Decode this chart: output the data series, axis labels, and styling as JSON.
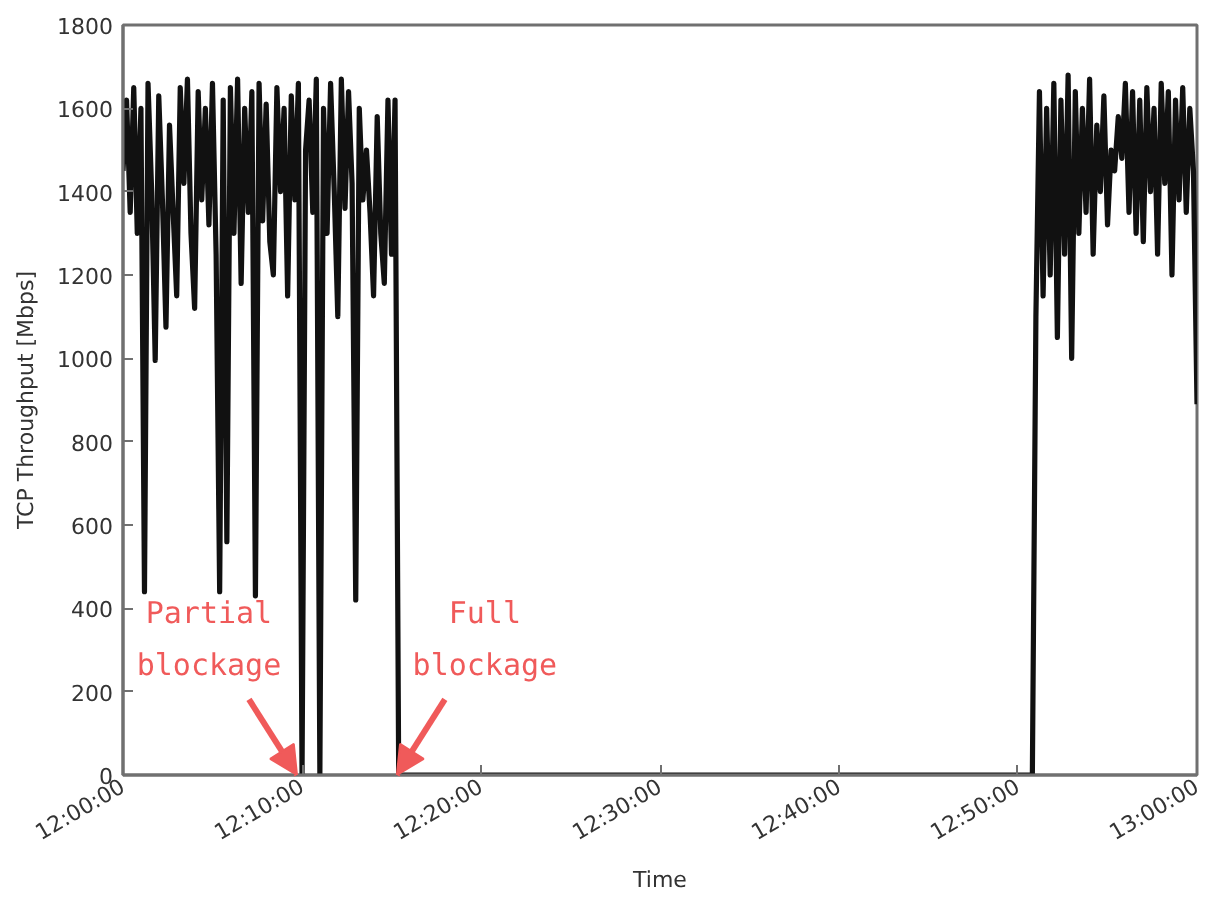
{
  "chart_data": {
    "type": "line",
    "xlabel": "Time",
    "ylabel": "TCP Throughput [Mbps]",
    "color": "#111111",
    "x": [
      12.0,
      12.0033,
      12.0067,
      12.01,
      12.0133,
      12.0167,
      12.02,
      12.0233,
      12.0267,
      12.03,
      12.0333,
      12.0367,
      12.04,
      12.0433,
      12.0467,
      12.05,
      12.0533,
      12.0567,
      12.06,
      12.0633,
      12.0667,
      12.07,
      12.0733,
      12.0767,
      12.08,
      12.0833,
      12.0867,
      12.09,
      12.0933,
      12.0967,
      12.1,
      12.1033,
      12.1067,
      12.11,
      12.1133,
      12.1167,
      12.12,
      12.1233,
      12.1267,
      12.13,
      12.1333,
      12.1367,
      12.14,
      12.1433,
      12.1467,
      12.15,
      12.1533,
      12.1567,
      12.16,
      12.1633,
      12.1667,
      12.17,
      12.1733,
      12.1767,
      12.18,
      12.1833,
      12.1867,
      12.19,
      12.1933,
      12.1967,
      12.2,
      12.2033,
      12.2067,
      12.21,
      12.2133,
      12.2167,
      12.22,
      12.2233,
      12.2267,
      12.23,
      12.2333,
      12.2367,
      12.24,
      12.2433,
      12.2467,
      12.25,
      12.2533,
      12.2567,
      12.8467,
      12.85,
      12.8533,
      12.8567,
      12.86,
      12.8633,
      12.8667,
      12.87,
      12.8733,
      12.8767,
      12.88,
      12.8833,
      12.8867,
      12.89,
      12.8933,
      12.8967,
      12.9,
      12.9033,
      12.9067,
      12.91,
      12.9133,
      12.9167,
      12.92,
      12.9233,
      12.9267,
      12.93,
      12.9333,
      12.9367,
      12.94,
      12.9433,
      12.9467,
      12.95,
      12.9533,
      12.9567,
      12.96,
      12.9633,
      12.9667,
      12.97,
      12.9733,
      12.9767,
      12.98,
      12.9833,
      12.9867,
      12.99,
      12.9933,
      12.9967,
      13.0
    ],
    "values": [
      1450,
      1620,
      1350,
      1650,
      1300,
      1600,
      440,
      1660,
      1400,
      995,
      1630,
      1380,
      1075,
      1560,
      1350,
      1150,
      1650,
      1420,
      1670,
      1300,
      1120,
      1640,
      1380,
      1600,
      1320,
      1660,
      1250,
      440,
      1620,
      560,
      1650,
      1300,
      1670,
      1180,
      1600,
      1350,
      1640,
      430,
      1660,
      1330,
      1610,
      1280,
      1200,
      1650,
      1400,
      1600,
      1150,
      1630,
      1380,
      1660,
      0,
      1500,
      1620,
      1350,
      1670,
      0,
      1600,
      1300,
      1660,
      1400,
      1100,
      1670,
      1360,
      1640,
      1420,
      420,
      1600,
      1380,
      1500,
      1350,
      1150,
      1580,
      1300,
      1180,
      1620,
      1250,
      1620,
      0,
      0,
      1100,
      1640,
      1150,
      1600,
      1200,
      1660,
      1050,
      1620,
      1250,
      1680,
      1000,
      1640,
      1300,
      1600,
      1350,
      1670,
      1250,
      1560,
      1400,
      1630,
      1320,
      1500,
      1450,
      1580,
      1480,
      1660,
      1350,
      1640,
      1300,
      1620,
      1280,
      1650,
      1400,
      1600,
      1250,
      1660,
      1420,
      1640,
      1200,
      1620,
      1380,
      1650,
      1350,
      1600,
      1450,
      890
    ],
    "xlim": [
      12.0,
      13.0
    ],
    "ylim": [
      0,
      1800
    ],
    "xticks": [
      {
        "value": 12.0,
        "label": "12:00:00"
      },
      {
        "value": 12.1667,
        "label": "12:10:00"
      },
      {
        "value": 12.3333,
        "label": "12:20:00"
      },
      {
        "value": 12.5,
        "label": "12:30:00"
      },
      {
        "value": 12.6667,
        "label": "12:40:00"
      },
      {
        "value": 12.8333,
        "label": "12:50:00"
      },
      {
        "value": 13.0,
        "label": "13:00:00"
      }
    ],
    "yticks": [
      0,
      200,
      400,
      600,
      800,
      1000,
      1200,
      1400,
      1600,
      1800
    ],
    "annotations": [
      {
        "text": "Partial blockage",
        "x": 12.162,
        "y": 0
      },
      {
        "text": "Full blockage",
        "x": 12.255,
        "y": 0
      }
    ]
  }
}
